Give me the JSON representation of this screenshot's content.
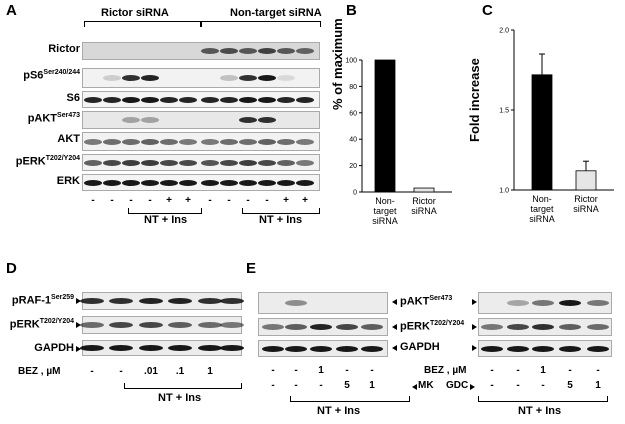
{
  "panel_a": {
    "letter": "A",
    "group_left": "Rictor siRNA",
    "group_right": "Non-target siRNA",
    "rows": [
      {
        "name": "Rictor",
        "sup": ""
      },
      {
        "name": "pS6",
        "sup": "Ser240/244"
      },
      {
        "name": "S6",
        "sup": ""
      },
      {
        "name": "pAKT",
        "sup": "Ser473"
      },
      {
        "name": "AKT",
        "sup": ""
      },
      {
        "name": "pERK",
        "sup": "T202/Y204"
      },
      {
        "name": "ERK",
        "sup": ""
      }
    ],
    "lanes_left": [
      "-",
      "-",
      "-",
      "-",
      "+",
      "+"
    ],
    "lanes_right": [
      "-",
      "-",
      "-",
      "-",
      "+",
      "+"
    ],
    "treat": "NT + Ins"
  },
  "panel_b": {
    "letter": "B",
    "ylabel": "% of maximum",
    "ticks": [
      "0",
      "20",
      "40",
      "60",
      "80",
      "100"
    ],
    "cats": [
      [
        "Non-",
        "target",
        "siRNA"
      ],
      [
        "Rictor",
        "siRNA"
      ]
    ],
    "chart_data": {
      "type": "bar",
      "categories": [
        "Non-target siRNA",
        "Rictor siRNA"
      ],
      "values": [
        100,
        3
      ],
      "ylabel": "% of maximum",
      "ylim": [
        0,
        100
      ]
    }
  },
  "panel_c": {
    "letter": "C",
    "ylabel": "Fold increase",
    "ticks": [
      "1.0",
      "1.5",
      "2.0"
    ],
    "cats": [
      [
        "Non-",
        "target",
        "siRNA"
      ],
      [
        "Rictor",
        "siRNA"
      ]
    ],
    "chart_data": {
      "type": "bar",
      "categories": [
        "Non-target siRNA",
        "Rictor siRNA"
      ],
      "values": [
        1.72,
        1.12
      ],
      "errors": [
        0.13,
        0.06
      ],
      "ylabel": "Fold increase",
      "ylim": [
        1.0,
        2.0
      ]
    }
  },
  "panel_d": {
    "letter": "D",
    "rows": [
      {
        "name": "pRAF-1",
        "sup": "Ser259"
      },
      {
        "name": "pERK",
        "sup": "T202/Y204"
      },
      {
        "name": "GAPDH",
        "sup": ""
      }
    ],
    "bez_label": "BEZ , µM",
    "bez_vals": [
      "-",
      "-",
      ".01",
      ".1",
      "1"
    ],
    "treat": "NT + Ins"
  },
  "panel_e": {
    "letter": "E",
    "rows": [
      {
        "name": "pAKT",
        "sup": "Ser473"
      },
      {
        "name": "pERK",
        "sup": "T202/Y204"
      },
      {
        "name": "GAPDH",
        "sup": ""
      }
    ],
    "bez_label": "BEZ , µM",
    "bez_vals_left": [
      "-",
      "-",
      "1",
      "-",
      "-"
    ],
    "bez_vals_right": [
      "-",
      "-",
      "1",
      "-",
      "-"
    ],
    "mk_label": "MK",
    "gdc_label": "GDC",
    "mk_vals": [
      "-",
      "-",
      "-",
      "5",
      "1"
    ],
    "gdc_vals": [
      "-",
      "-",
      "-",
      "5",
      "1"
    ],
    "treat": "NT + Ins"
  }
}
